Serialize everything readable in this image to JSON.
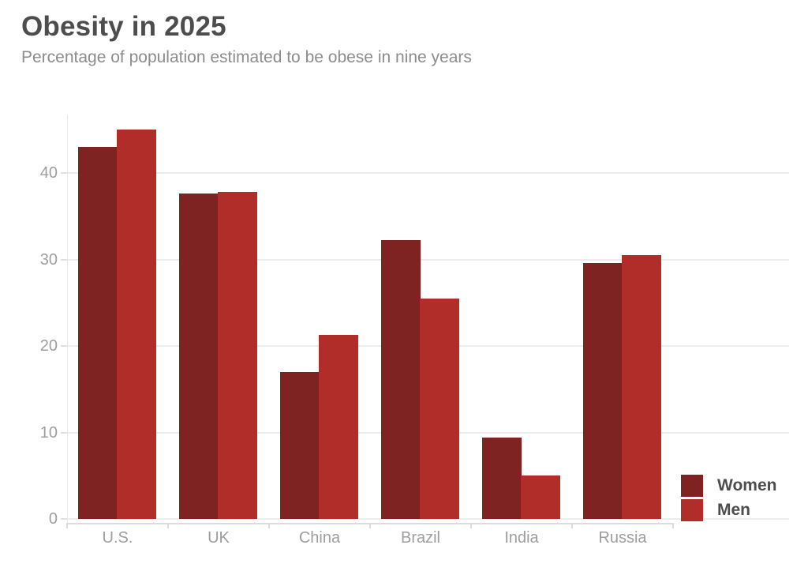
{
  "header": {
    "title": "Obesity in 2025",
    "subtitle": "Percentage of population estimated to be obese in nine years"
  },
  "chart_data": {
    "type": "bar",
    "title": "Obesity in 2025",
    "subtitle": "Percentage of population estimated to be obese in nine years",
    "categories": [
      "U.S.",
      "UK",
      "China",
      "Brazil",
      "India",
      "Russia"
    ],
    "series": [
      {
        "name": "Women",
        "color": "#7f2222",
        "values": [
          43,
          37.6,
          17,
          32.2,
          9.4,
          29.6
        ]
      },
      {
        "name": "Men",
        "color": "#b02d2a",
        "values": [
          45,
          37.8,
          21.3,
          25.5,
          5,
          30.5
        ]
      }
    ],
    "xlabel": "",
    "ylabel": "",
    "y_ticks": [
      0,
      10,
      20,
      30,
      40
    ],
    "ylim": [
      0,
      47
    ],
    "grid": "horizontal",
    "legend_position": "bottom-right",
    "legend_entries": [
      "Women",
      "Men"
    ]
  },
  "colors": {
    "background": "#ffffff",
    "title_text": "#4d4d4d",
    "subtitle_text": "#8c8c8c",
    "axis_label_text": "#9e9e9e",
    "legend_text": "#4d4d4d",
    "gridline": "#ececec",
    "axis_line": "#dcdcdc",
    "women_bar": "#7f2222",
    "men_bar": "#b02d2a"
  }
}
